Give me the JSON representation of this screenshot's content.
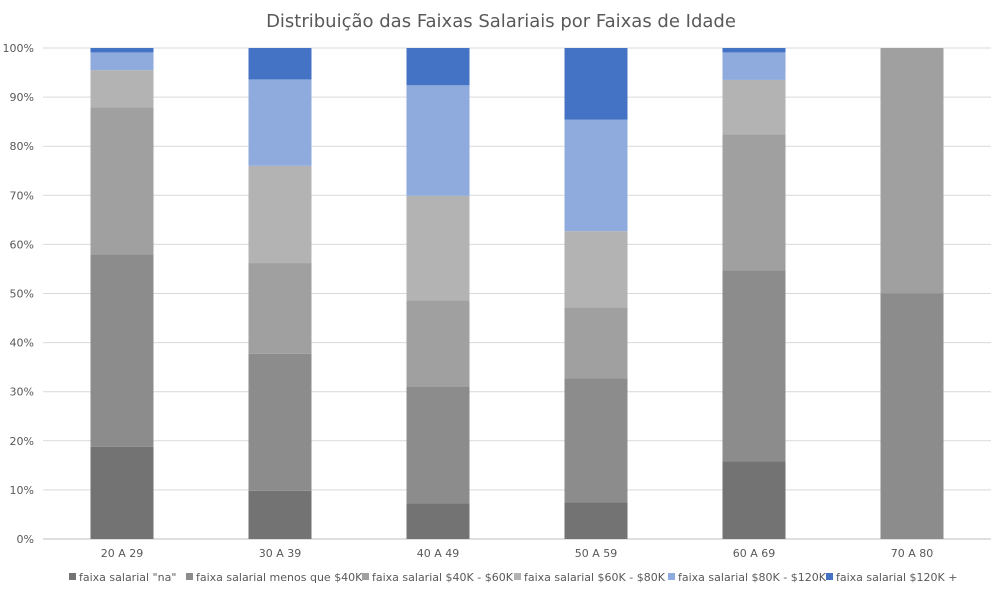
{
  "chart_data": {
    "type": "bar",
    "stacked": "percent",
    "title": "Distribuição das Faixas Salariais por Faixas de Idade",
    "xlabel": "",
    "ylabel": "",
    "ylim": [
      0,
      100
    ],
    "yticks": [
      "0%",
      "10%",
      "20%",
      "30%",
      "40%",
      "50%",
      "60%",
      "70%",
      "80%",
      "90%",
      "100%"
    ],
    "grid": true,
    "legend_position": "bottom",
    "categories": [
      "20 A 29",
      "30 A 39",
      "40 A 49",
      "50 A 59",
      "60 A 69",
      "70 A 80"
    ],
    "series": [
      {
        "name": "faixa salarial \"na\"",
        "color": "#737373",
        "values": [
          18.8,
          9.8,
          7.3,
          7.5,
          15.8,
          0
        ]
      },
      {
        "name": "faixa salarial menos que $40K",
        "color": "#8c8c8c",
        "values": [
          39.2,
          27.9,
          23.8,
          25.2,
          38.9,
          50
        ]
      },
      {
        "name": "faixa salarial $40K - $60K",
        "color": "#a0a0a0",
        "values": [
          29.9,
          18.5,
          17.5,
          14.5,
          27.7,
          50
        ]
      },
      {
        "name": "faixa salarial $60K - $80K",
        "color": "#b3b3b3",
        "values": [
          7.6,
          19.8,
          21.3,
          15.5,
          11.1,
          0
        ]
      },
      {
        "name": "faixa salarial $80K - $120K",
        "color": "#8faadc",
        "values": [
          3.6,
          17.6,
          22.5,
          22.7,
          5.6,
          0
        ]
      },
      {
        "name": "faixa salarial $120K +",
        "color": "#4472c4",
        "values": [
          0.9,
          6.4,
          7.6,
          14.6,
          0.9,
          0
        ]
      }
    ]
  }
}
